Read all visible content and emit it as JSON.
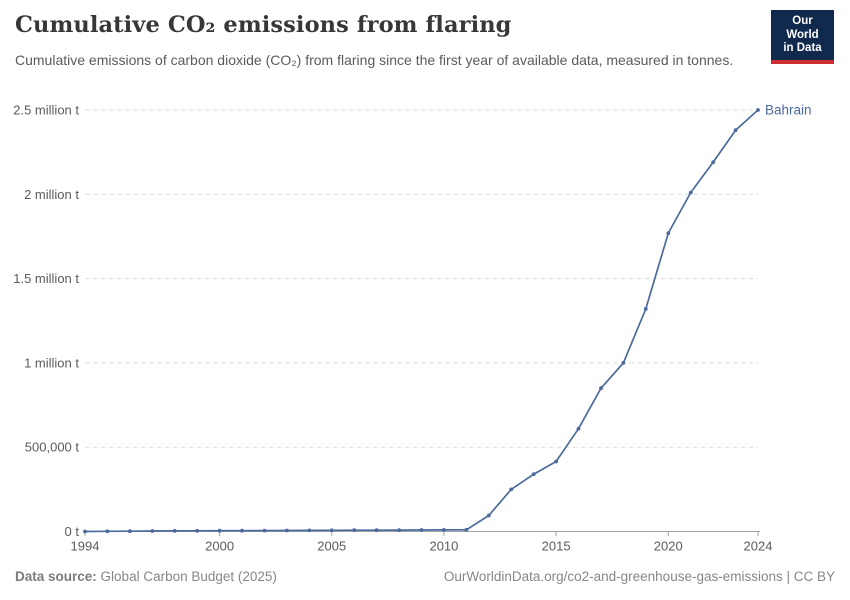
{
  "header": {
    "title": "Cumulative CO₂ emissions from flaring",
    "subtitle": "Cumulative emissions of carbon dioxide (CO₂) from flaring since the first year of available data, measured in tonnes.",
    "logo": {
      "line1": "Our World",
      "line2": "in Data"
    }
  },
  "chart_data": {
    "type": "line",
    "title": "Cumulative CO₂ emissions from flaring",
    "xlabel": "",
    "ylabel": "",
    "xlim": [
      1994,
      2024
    ],
    "ylim": [
      0,
      2500000
    ],
    "grid": "horizontal-dashed",
    "legend": "end-of-line-label",
    "x_ticks": [
      1994,
      2000,
      2005,
      2010,
      2015,
      2020,
      2024
    ],
    "y_ticks": [
      {
        "value": 0,
        "label": "0 t"
      },
      {
        "value": 500000,
        "label": "500,000 t"
      },
      {
        "value": 1000000,
        "label": "1 million t"
      },
      {
        "value": 1500000,
        "label": "1.5 million t"
      },
      {
        "value": 2000000,
        "label": "2 million t"
      },
      {
        "value": 2500000,
        "label": "2.5 million t"
      }
    ],
    "series": [
      {
        "name": "Bahrain",
        "color": "#4C6A9C",
        "x": [
          1994,
          1995,
          1996,
          1997,
          1998,
          1999,
          2000,
          2001,
          2002,
          2003,
          2004,
          2005,
          2006,
          2007,
          2008,
          2009,
          2010,
          2011,
          2012,
          2013,
          2014,
          2015,
          2016,
          2017,
          2018,
          2019,
          2020,
          2021,
          2022,
          2023,
          2024
        ],
        "values": [
          0,
          1000,
          2000,
          3000,
          3500,
          4000,
          4500,
          5000,
          5500,
          6000,
          6500,
          7000,
          7500,
          8000,
          8500,
          9000,
          9500,
          10000,
          95000,
          250000,
          340000,
          415000,
          610000,
          850000,
          1000000,
          1320000,
          1770000,
          2010000,
          2190000,
          2380000,
          2500000
        ]
      }
    ]
  },
  "footer": {
    "source_label": "Data source:",
    "source_value": "Global Carbon Budget (2025)",
    "license": "OurWorldinData.org/co2-and-greenhouse-gas-emissions | CC BY"
  },
  "colors": {
    "accent_line": "#4C6A9C",
    "logo_bg": "#12294E",
    "logo_stripe": "#CB2D30",
    "grid": "#dcdcdc",
    "axis": "#a3a3a3",
    "tick_text": "#5b5b5b",
    "footer_text": "#878787"
  }
}
